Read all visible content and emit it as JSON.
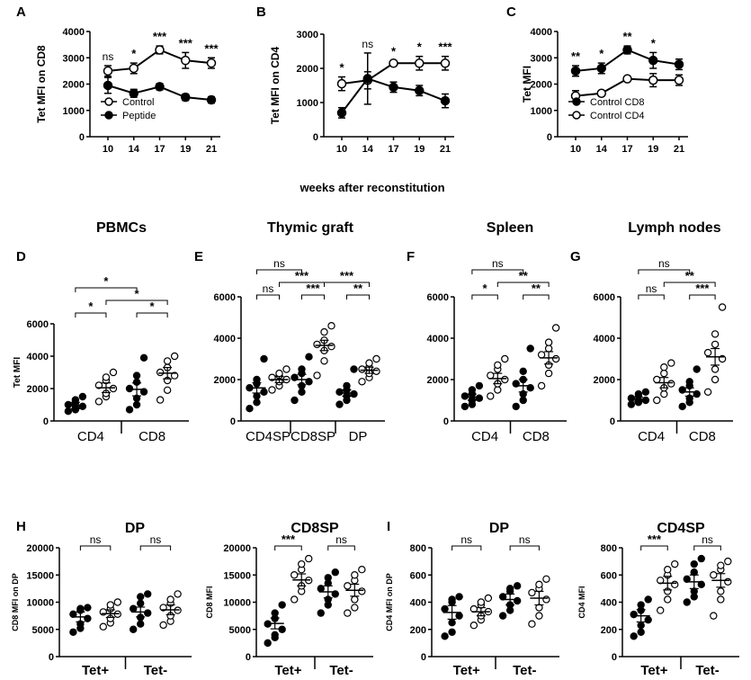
{
  "figure": {
    "shared_xlabel": "weeks after reconstitution"
  },
  "chart_data": [
    {
      "id": "A",
      "type": "line",
      "letter": "A",
      "ylabel": "Tet MFI on CD8",
      "ylim": [
        0,
        4000
      ],
      "yticks": [
        0,
        1000,
        2000,
        3000,
        4000
      ],
      "x": [
        "10",
        "14",
        "17",
        "19",
        "21"
      ],
      "series": [
        {
          "name": "Control",
          "marker": "open-circle",
          "values": [
            2500,
            2600,
            3300,
            2900,
            2800
          ],
          "err": [
            200,
            200,
            150,
            300,
            200
          ]
        },
        {
          "name": "Peptide",
          "marker": "filled-circle",
          "values": [
            1950,
            1650,
            1900,
            1500,
            1400
          ],
          "err": [
            300,
            150,
            120,
            120,
            120
          ]
        }
      ],
      "annotations": [
        "ns",
        "*",
        "***",
        "***",
        "***"
      ],
      "legend": [
        "Control",
        "Peptide"
      ]
    },
    {
      "id": "B",
      "type": "line",
      "letter": "B",
      "ylabel": "Tet MFI on CD4",
      "ylim": [
        0,
        3000
      ],
      "yticks": [
        0,
        1000,
        2000,
        3000
      ],
      "x": [
        "10",
        "14",
        "17",
        "19",
        "21"
      ],
      "series": [
        {
          "name": "Control",
          "marker": "open-circle",
          "values": [
            1550,
            1650,
            2150,
            2150,
            2150
          ],
          "err": [
            200,
            250,
            80,
            200,
            200
          ]
        },
        {
          "name": "Peptide",
          "marker": "filled-circle",
          "values": [
            700,
            1700,
            1450,
            1350,
            1050
          ],
          "err": [
            150,
            750,
            150,
            150,
            200
          ]
        }
      ],
      "annotations": [
        "*",
        "ns",
        "*",
        "*",
        "***"
      ]
    },
    {
      "id": "C",
      "type": "line",
      "letter": "C",
      "ylabel": "Tet MFI",
      "ylim": [
        0,
        4000
      ],
      "yticks": [
        0,
        1000,
        2000,
        3000,
        4000
      ],
      "x": [
        "10",
        "14",
        "17",
        "19",
        "21"
      ],
      "series": [
        {
          "name": "Control CD8",
          "marker": "filled-circle",
          "values": [
            2500,
            2600,
            3300,
            2900,
            2750
          ],
          "err": [
            200,
            200,
            150,
            300,
            200
          ]
        },
        {
          "name": "Control CD4",
          "marker": "open-circle",
          "values": [
            1550,
            1650,
            2200,
            2150,
            2150
          ],
          "err": [
            200,
            80,
            80,
            250,
            200
          ]
        }
      ],
      "annotations": [
        "**",
        "*",
        "**",
        "*",
        ""
      ],
      "legend": [
        "Control CD8",
        "Control CD4"
      ]
    },
    {
      "id": "D",
      "type": "scatter",
      "letter": "D",
      "title": "PBMCs",
      "ylabel": "Tet MFI",
      "ylim": [
        0,
        6000
      ],
      "yticks": [
        0,
        2000,
        4000,
        6000
      ],
      "groups": [
        "CD4",
        "CD8"
      ],
      "columns": [
        {
          "fill": "filled",
          "mean": 950,
          "sem": 200,
          "points": [
            600,
            700,
            800,
            900,
            1000,
            1100,
            1300,
            1500
          ]
        },
        {
          "fill": "open",
          "mean": 2050,
          "sem": 300,
          "points": [
            1200,
            1500,
            1700,
            2000,
            2200,
            2500,
            2700,
            3000
          ]
        },
        {
          "fill": "filled",
          "mean": 1950,
          "sem": 400,
          "points": [
            700,
            1000,
            1400,
            1800,
            2000,
            2400,
            2800,
            3900
          ]
        },
        {
          "fill": "open",
          "mean": 2950,
          "sem": 350,
          "points": [
            1300,
            1900,
            2500,
            2800,
            3000,
            3300,
            3700,
            4000
          ]
        }
      ],
      "brackets": [
        {
          "from": 0,
          "to": 2,
          "label": "*",
          "level": 3
        },
        {
          "from": 0,
          "to": 1,
          "label": "*",
          "level": 1
        },
        {
          "from": 1,
          "to": 3,
          "label": "*",
          "level": 2
        },
        {
          "from": 2,
          "to": 3,
          "label": "*",
          "level": 1
        }
      ]
    },
    {
      "id": "E",
      "type": "scatter",
      "letter": "E",
      "title": "Thymic graft",
      "ylabel": "",
      "ylim": [
        0,
        6000
      ],
      "yticks": [
        0,
        2000,
        4000,
        6000
      ],
      "groups": [
        "CD4SP",
        "CD8SP",
        "DP"
      ],
      "columns": [
        {
          "fill": "filled",
          "mean": 1600,
          "sem": 250,
          "points": [
            600,
            900,
            1200,
            1400,
            1600,
            1800,
            2000,
            3000
          ]
        },
        {
          "fill": "open",
          "mean": 2000,
          "sem": 150,
          "points": [
            1500,
            1700,
            1900,
            2000,
            2100,
            2200,
            2300,
            2500
          ]
        },
        {
          "fill": "filled",
          "mean": 2000,
          "sem": 250,
          "points": [
            1000,
            1400,
            1700,
            1900,
            2100,
            2300,
            2500,
            3100
          ]
        },
        {
          "fill": "open",
          "mean": 3650,
          "sem": 250,
          "points": [
            2200,
            2900,
            3400,
            3600,
            3700,
            3900,
            4300,
            4600
          ]
        },
        {
          "fill": "filled",
          "mean": 1350,
          "sem": 150,
          "points": [
            800,
            1000,
            1200,
            1300,
            1400,
            1500,
            1700,
            2500
          ]
        },
        {
          "fill": "open",
          "mean": 2450,
          "sem": 150,
          "points": [
            1900,
            2100,
            2300,
            2400,
            2500,
            2600,
            2800,
            3000
          ]
        }
      ],
      "brackets": [
        {
          "from": 0,
          "to": 2,
          "label": "ns",
          "level": 3
        },
        {
          "from": 0,
          "to": 1,
          "label": "ns",
          "level": 1
        },
        {
          "from": 1,
          "to": 3,
          "label": "***",
          "level": 2
        },
        {
          "from": 2,
          "to": 3,
          "label": "***",
          "level": 1
        },
        {
          "from": 3,
          "to": 5,
          "label": "***",
          "level": 2
        },
        {
          "from": 4,
          "to": 5,
          "label": "**",
          "level": 1
        }
      ]
    },
    {
      "id": "F",
      "type": "scatter",
      "letter": "F",
      "title": "Spleen",
      "ylabel": "",
      "ylim": [
        0,
        6000
      ],
      "yticks": [
        0,
        2000,
        4000,
        6000
      ],
      "groups": [
        "CD4",
        "CD8"
      ],
      "columns": [
        {
          "fill": "filled",
          "mean": 1150,
          "sem": 150,
          "points": [
            700,
            800,
            1000,
            1100,
            1200,
            1300,
            1500,
            1700
          ]
        },
        {
          "fill": "open",
          "mean": 2050,
          "sem": 250,
          "points": [
            1200,
            1500,
            1800,
            2000,
            2200,
            2500,
            2700,
            3000
          ]
        },
        {
          "fill": "filled",
          "mean": 1700,
          "sem": 300,
          "points": [
            700,
            1000,
            1300,
            1600,
            1800,
            2000,
            2400,
            3500
          ]
        },
        {
          "fill": "open",
          "mean": 3050,
          "sem": 300,
          "points": [
            1700,
            2300,
            2700,
            3000,
            3200,
            3500,
            3800,
            4500
          ]
        }
      ],
      "brackets": [
        {
          "from": 0,
          "to": 2,
          "label": "ns",
          "level": 3
        },
        {
          "from": 0,
          "to": 1,
          "label": "*",
          "level": 1
        },
        {
          "from": 1,
          "to": 3,
          "label": "**",
          "level": 2
        },
        {
          "from": 2,
          "to": 3,
          "label": "**",
          "level": 1
        }
      ]
    },
    {
      "id": "G",
      "type": "scatter",
      "letter": "G",
      "title": "Lymph nodes",
      "ylabel": "",
      "ylim": [
        0,
        6000
      ],
      "yticks": [
        0,
        2000,
        4000,
        6000
      ],
      "groups": [
        "CD4",
        "CD8"
      ],
      "columns": [
        {
          "fill": "filled",
          "mean": 1050,
          "sem": 100,
          "points": [
            800,
            900,
            950,
            1000,
            1100,
            1200,
            1300,
            1400
          ]
        },
        {
          "fill": "open",
          "mean": 1850,
          "sem": 250,
          "points": [
            1000,
            1300,
            1600,
            1800,
            2000,
            2300,
            2600,
            2800
          ]
        },
        {
          "fill": "filled",
          "mean": 1400,
          "sem": 200,
          "points": [
            700,
            900,
            1100,
            1300,
            1500,
            1700,
            1900,
            2500
          ]
        },
        {
          "fill": "open",
          "mean": 3100,
          "sem": 400,
          "points": [
            1400,
            2000,
            2500,
            3000,
            3300,
            3700,
            4200,
            5500
          ]
        }
      ],
      "brackets": [
        {
          "from": 0,
          "to": 2,
          "label": "ns",
          "level": 3
        },
        {
          "from": 0,
          "to": 1,
          "label": "ns",
          "level": 1
        },
        {
          "from": 1,
          "to": 3,
          "label": "**",
          "level": 2
        },
        {
          "from": 2,
          "to": 3,
          "label": "***",
          "level": 1
        }
      ]
    },
    {
      "id": "H1",
      "type": "scatter",
      "letter": "H",
      "title": "DP",
      "ylabel": "CD8 MFI on DP",
      "ylim": [
        0,
        20000
      ],
      "yticks": [
        0,
        5000,
        10000,
        15000,
        20000
      ],
      "groups": [
        "Tet+",
        "Tet-"
      ],
      "columns": [
        {
          "fill": "filled",
          "mean": 7300,
          "sem": 900,
          "points": [
            4500,
            5200,
            6000,
            7000,
            7800,
            8500,
            8800,
            9000
          ]
        },
        {
          "fill": "open",
          "mean": 7900,
          "sem": 700,
          "points": [
            5500,
            6200,
            7000,
            7800,
            8200,
            8800,
            9500,
            10000
          ]
        },
        {
          "fill": "filled",
          "mean": 8200,
          "sem": 900,
          "points": [
            5000,
            6000,
            7200,
            8000,
            8800,
            9800,
            11000,
            11500
          ]
        },
        {
          "fill": "open",
          "mean": 8600,
          "sem": 900,
          "points": [
            5800,
            6500,
            7500,
            8500,
            9000,
            9800,
            10500,
            11500
          ]
        }
      ],
      "brackets": [
        {
          "from": 0,
          "to": 1,
          "label": "ns",
          "level": 1
        },
        {
          "from": 2,
          "to": 3,
          "label": "ns",
          "level": 1
        }
      ]
    },
    {
      "id": "H2",
      "type": "scatter",
      "letter": "",
      "title": "CD8SP",
      "ylabel": "CD8 MFI",
      "ylim": [
        0,
        20000
      ],
      "yticks": [
        0,
        5000,
        10000,
        15000,
        20000
      ],
      "groups": [
        "Tet+",
        "Tet-"
      ],
      "columns": [
        {
          "fill": "filled",
          "mean": 6100,
          "sem": 1000,
          "points": [
            2500,
            3500,
            4000,
            5000,
            6000,
            7000,
            8000,
            9500
          ]
        },
        {
          "fill": "open",
          "mean": 14100,
          "sem": 1100,
          "points": [
            10500,
            12000,
            13000,
            14000,
            15000,
            16000,
            17000,
            18000
          ]
        },
        {
          "fill": "filled",
          "mean": 11900,
          "sem": 1100,
          "points": [
            8000,
            9500,
            10500,
            11500,
            12500,
            13500,
            14500,
            15500
          ]
        },
        {
          "fill": "open",
          "mean": 12200,
          "sem": 1100,
          "points": [
            8000,
            9000,
            10500,
            12000,
            13000,
            14000,
            15000,
            16000
          ]
        }
      ],
      "brackets": [
        {
          "from": 0,
          "to": 1,
          "label": "***",
          "level": 1
        },
        {
          "from": 2,
          "to": 3,
          "label": "ns",
          "level": 1
        }
      ]
    },
    {
      "id": "I1",
      "type": "scatter",
      "letter": "I",
      "title": "DP",
      "ylabel": "CD4 MFI on DP",
      "ylim": [
        0,
        800
      ],
      "yticks": [
        0,
        200,
        400,
        600,
        800
      ],
      "groups": [
        "Tet+",
        "Tet-"
      ],
      "columns": [
        {
          "fill": "filled",
          "mean": 325,
          "sem": 50,
          "points": [
            150,
            180,
            250,
            300,
            350,
            400,
            420,
            440
          ]
        },
        {
          "fill": "open",
          "mean": 330,
          "sem": 30,
          "points": [
            230,
            270,
            300,
            330,
            350,
            380,
            400,
            430
          ]
        },
        {
          "fill": "filled",
          "mean": 420,
          "sem": 40,
          "points": [
            300,
            340,
            380,
            410,
            440,
            480,
            500,
            520
          ]
        },
        {
          "fill": "open",
          "mean": 430,
          "sem": 50,
          "points": [
            240,
            300,
            360,
            420,
            470,
            500,
            530,
            570
          ]
        }
      ],
      "brackets": [
        {
          "from": 0,
          "to": 1,
          "label": "ns",
          "level": 1
        },
        {
          "from": 2,
          "to": 3,
          "label": "ns",
          "level": 1
        }
      ]
    },
    {
      "id": "I2",
      "type": "scatter",
      "letter": "",
      "title": "CD4SP",
      "ylabel": "CD4 MFI",
      "ylim": [
        0,
        800
      ],
      "yticks": [
        0,
        200,
        400,
        600,
        800
      ],
      "groups": [
        "Tet+",
        "Tet-"
      ],
      "columns": [
        {
          "fill": "filled",
          "mean": 300,
          "sem": 45,
          "points": [
            150,
            180,
            230,
            270,
            310,
            340,
            380,
            420
          ]
        },
        {
          "fill": "open",
          "mean": 540,
          "sem": 50,
          "points": [
            340,
            420,
            480,
            530,
            560,
            600,
            640,
            680
          ]
        },
        {
          "fill": "filled",
          "mean": 550,
          "sem": 50,
          "points": [
            400,
            440,
            480,
            530,
            570,
            620,
            680,
            720
          ]
        },
        {
          "fill": "open",
          "mean": 560,
          "sem": 50,
          "points": [
            300,
            420,
            480,
            550,
            600,
            640,
            670,
            700
          ]
        }
      ],
      "brackets": [
        {
          "from": 0,
          "to": 1,
          "label": "***",
          "level": 1
        },
        {
          "from": 2,
          "to": 3,
          "label": "ns",
          "level": 1
        }
      ]
    }
  ]
}
